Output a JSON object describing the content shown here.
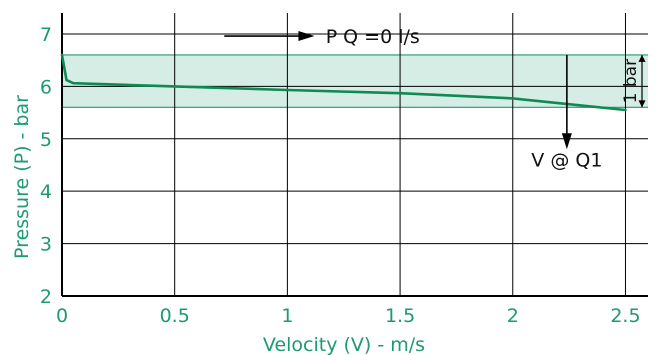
{
  "chart_data": {
    "type": "line",
    "title": "",
    "xlabel": "Velocity (V) - m/s",
    "ylabel": "Pressure (P) - bar",
    "xlim": [
      0,
      2.6
    ],
    "ylim": [
      2,
      7.4
    ],
    "xticks": [
      0,
      0.5,
      1,
      1.5,
      2,
      2.5
    ],
    "xtick_labels": [
      "0",
      "0.5",
      "1",
      "1.5",
      "2",
      "2.5"
    ],
    "yticks": [
      2,
      3,
      4,
      5,
      6,
      7
    ],
    "ytick_labels": [
      "2",
      "3",
      "4",
      "5",
      "6",
      "7"
    ],
    "grid": true,
    "band": {
      "y_min": 5.6,
      "y_max": 6.6,
      "color": "#d5ede4",
      "edge_color": "#1e9a73"
    },
    "series": [
      {
        "x": [
          0,
          0.02,
          0.05,
          0.5,
          1,
          1.5,
          2,
          2.2,
          2.5
        ],
        "y": [
          6.6,
          6.12,
          6.06,
          6.0,
          5.93,
          5.87,
          5.77,
          5.68,
          5.55
        ],
        "color": "#108a55"
      }
    ],
    "annotations": {
      "p_label": "P Q =0 l/s",
      "v_label": "V @ Q1",
      "band_label": "1 bar",
      "p_arrow": {
        "x0": 0.72,
        "x1": 1.12,
        "y": 6.96
      },
      "v_arrow": {
        "x": 2.24,
        "y0": 6.6,
        "y1": 4.8
      },
      "p_label_pos": {
        "x": 1.17,
        "y": 6.96
      },
      "v_label_pos": {
        "x": 2.24,
        "y": 4.6
      },
      "band_bracket": {
        "x": 2.6,
        "y0": 5.6,
        "y1": 6.6
      }
    }
  }
}
